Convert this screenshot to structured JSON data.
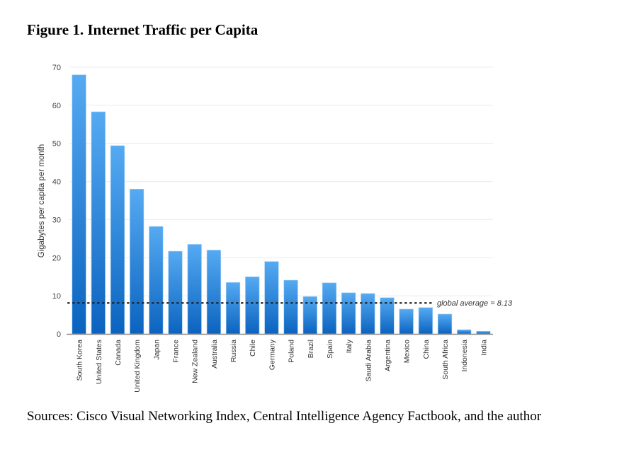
{
  "figure": {
    "title": "Figure 1. Internet Traffic per Capita",
    "sources": "Sources: Cisco Visual Networking Index, Central Intelligence Agency Factbook, and the author"
  },
  "chart_data": {
    "type": "bar",
    "title": "Figure 1. Internet Traffic per Capita",
    "xlabel": "",
    "ylabel": "Gigabytes per capita per month",
    "ylim": [
      0,
      70
    ],
    "yticks": [
      0,
      10,
      20,
      30,
      40,
      50,
      60,
      70
    ],
    "grid": true,
    "legend": "none",
    "bar_color_top": "#55aaf2",
    "bar_color_bottom": "#0b63bf",
    "categories": [
      "South Korea",
      "United States",
      "Canada",
      "United Kingdom",
      "Japan",
      "France",
      "New Zealand",
      "Australia",
      "Russia",
      "Chile",
      "Germany",
      "Poland",
      "Brazil",
      "Spain",
      "Italy",
      "Saudi Arabia",
      "Argentina",
      "Mexico",
      "China",
      "South Africa",
      "Indonesia",
      "India"
    ],
    "values": [
      68.0,
      58.3,
      49.4,
      38.0,
      28.2,
      21.7,
      23.5,
      22.0,
      13.5,
      15.0,
      19.0,
      14.1,
      9.8,
      13.4,
      10.8,
      10.6,
      9.5,
      6.5,
      6.9,
      5.2,
      1.1,
      0.7
    ],
    "reference_line": {
      "value": 8.13,
      "label": "global average = 8.13",
      "style": "dotted"
    }
  }
}
